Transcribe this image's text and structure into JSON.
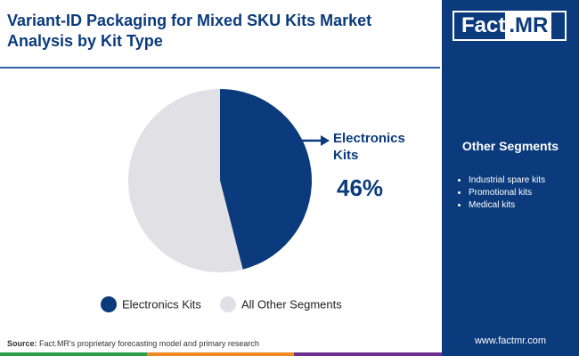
{
  "chart_data": {
    "type": "pie",
    "title": "Variant-ID Packaging for Mixed SKU Kits Market Analysis by Kit Type",
    "categories": [
      "Electronics Kits",
      "All Other Segments"
    ],
    "values": [
      46,
      54
    ],
    "value_labels": [
      "46%",
      null
    ],
    "colors": [
      "#0b3b7c",
      "#e1e0e5"
    ]
  },
  "logo": {
    "left": "Fact",
    "right": ".MR"
  },
  "side_panel": {
    "title": "Other Segments",
    "items": [
      "Industrial spare kits",
      "Promotional kits",
      "Medical kits"
    ]
  },
  "footer": {
    "source_label": "Source:",
    "source_text": "Fact.MR's proprietary forecasting model and primary research",
    "website": "www.factmr.com"
  }
}
